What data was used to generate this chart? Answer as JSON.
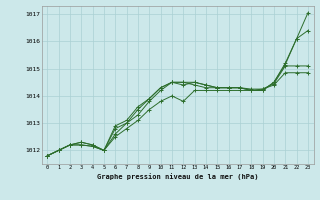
{
  "xlabel_bottom": "Graphe pression niveau de la mer (hPa)",
  "x_hours": [
    0,
    1,
    2,
    3,
    4,
    5,
    6,
    7,
    8,
    9,
    10,
    11,
    12,
    13,
    14,
    15,
    16,
    17,
    18,
    19,
    20,
    21,
    22,
    23
  ],
  "ylim": [
    1011.5,
    1017.3
  ],
  "yticks": [
    1012,
    1013,
    1014,
    1015,
    1016,
    1017
  ],
  "bg_color": "#cce8ea",
  "grid_color": "#aad0d4",
  "line_color": "#2d6e2d",
  "series": [
    [
      1011.8,
      1012.0,
      1012.2,
      1012.2,
      1012.15,
      1012.0,
      1012.5,
      1012.8,
      1013.1,
      1013.5,
      1013.8,
      1014.0,
      1013.8,
      1014.2,
      1014.2,
      1014.2,
      1014.2,
      1014.2,
      1014.2,
      1014.2,
      1014.5,
      1015.2,
      1016.1,
      1017.05
    ],
    [
      1011.8,
      1012.0,
      1012.2,
      1012.2,
      1012.15,
      1012.0,
      1012.6,
      1013.0,
      1013.3,
      1013.8,
      1014.2,
      1014.5,
      1014.4,
      1014.5,
      1014.4,
      1014.3,
      1014.3,
      1014.3,
      1014.2,
      1014.2,
      1014.5,
      1015.15,
      1016.1,
      1016.4
    ],
    [
      1011.8,
      1012.0,
      1012.2,
      1012.3,
      1012.2,
      1012.0,
      1012.8,
      1013.0,
      1013.5,
      1013.9,
      1014.3,
      1014.5,
      1014.5,
      1014.5,
      1014.4,
      1014.3,
      1014.3,
      1014.3,
      1014.2,
      1014.25,
      1014.45,
      1015.1,
      1015.1,
      1015.1
    ],
    [
      1011.8,
      1012.0,
      1012.2,
      1012.3,
      1012.2,
      1012.0,
      1012.9,
      1013.1,
      1013.6,
      1013.9,
      1014.3,
      1014.5,
      1014.5,
      1014.4,
      1014.3,
      1014.3,
      1014.3,
      1014.3,
      1014.25,
      1014.25,
      1014.4,
      1014.85,
      1014.85,
      1014.85
    ]
  ]
}
